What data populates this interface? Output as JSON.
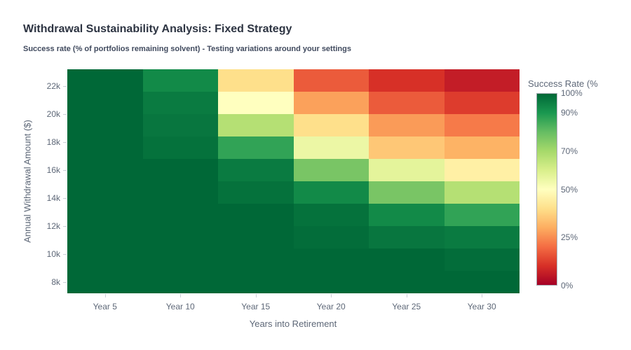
{
  "chart_data": {
    "type": "heatmap",
    "title": "Withdrawal Sustainability Analysis: Fixed Strategy",
    "subtitle": "Success rate (% of portfolios remaining solvent) - Testing variations around your settings",
    "xlabel": "Years into Retirement",
    "ylabel": "Annual Withdrawal Amount ($)",
    "x_categories": [
      "Year 5",
      "Year 10",
      "Year 15",
      "Year 20",
      "Year 25",
      "Year 30"
    ],
    "withdrawal_amounts_top_to_bottom": [
      22400,
      20800,
      19200,
      17600,
      16000,
      14400,
      12800,
      11200,
      9600,
      8000
    ],
    "values_top_to_bottom": [
      [
        100,
        93,
        40,
        17,
        10,
        6
      ],
      [
        100,
        96,
        50,
        28,
        17,
        12
      ],
      [
        100,
        97,
        67,
        40,
        27,
        22
      ],
      [
        100,
        98,
        87,
        55,
        35,
        31
      ],
      [
        100,
        100,
        96,
        77,
        57,
        45
      ],
      [
        100,
        100,
        98,
        93,
        77,
        67
      ],
      [
        100,
        100,
        100,
        98,
        93,
        87
      ],
      [
        100,
        100,
        100,
        99,
        97,
        96
      ],
      [
        100,
        100,
        100,
        100,
        100,
        99
      ],
      [
        100,
        100,
        100,
        100,
        100,
        100
      ]
    ],
    "y_axis": {
      "range": [
        7200,
        23200
      ],
      "ticks": [
        {
          "value": 22000,
          "label": "22k"
        },
        {
          "value": 20000,
          "label": "20k"
        },
        {
          "value": 18000,
          "label": "18k"
        },
        {
          "value": 16000,
          "label": "16k"
        },
        {
          "value": 14000,
          "label": "14k"
        },
        {
          "value": 12000,
          "label": "12k"
        },
        {
          "value": 10000,
          "label": "10k"
        },
        {
          "value": 8000,
          "label": "8k"
        }
      ]
    },
    "colorscale": [
      [
        0.0,
        "#A50026"
      ],
      [
        0.1,
        "#D73027"
      ],
      [
        0.2,
        "#F46D43"
      ],
      [
        0.3,
        "#FDAE61"
      ],
      [
        0.4,
        "#FEE08B"
      ],
      [
        0.5,
        "#FFFFBF"
      ],
      [
        0.6,
        "#D9EF8B"
      ],
      [
        0.7,
        "#A6D96A"
      ],
      [
        0.8,
        "#66BD63"
      ],
      [
        0.9,
        "#1A9850"
      ],
      [
        1.0,
        "#006837"
      ]
    ],
    "colorbar": {
      "title": "Success Rate (%",
      "ticks": [
        {
          "value": 100,
          "label": "100%"
        },
        {
          "value": 90,
          "label": "90%"
        },
        {
          "value": 70,
          "label": "70%"
        },
        {
          "value": 50,
          "label": "50%"
        },
        {
          "value": 25,
          "label": "25%"
        },
        {
          "value": 0,
          "label": "0%"
        }
      ]
    },
    "legend_position": "right",
    "grid": false
  }
}
